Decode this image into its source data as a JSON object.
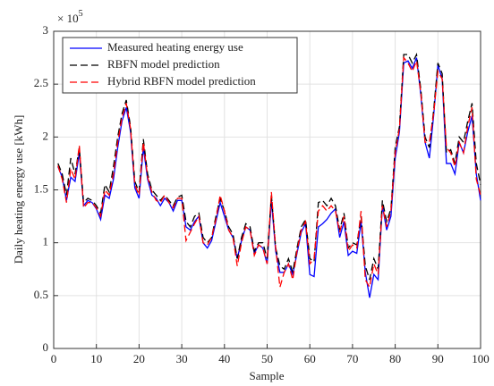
{
  "chart_data": {
    "type": "line",
    "xlabel": "Sample",
    "ylabel": "Daily heating energy use [kWh]",
    "y_multiplier": {
      "base": "× 10",
      "exponent": "5"
    },
    "x": [
      1,
      2,
      3,
      4,
      5,
      6,
      7,
      8,
      9,
      10,
      11,
      12,
      13,
      14,
      15,
      16,
      17,
      18,
      19,
      20,
      21,
      22,
      23,
      24,
      25,
      26,
      27,
      28,
      29,
      30,
      31,
      32,
      33,
      34,
      35,
      36,
      37,
      38,
      39,
      40,
      41,
      42,
      43,
      44,
      45,
      46,
      47,
      48,
      49,
      50,
      51,
      52,
      53,
      54,
      55,
      56,
      57,
      58,
      59,
      60,
      61,
      62,
      63,
      64,
      65,
      66,
      67,
      68,
      69,
      70,
      71,
      72,
      73,
      74,
      75,
      76,
      77,
      78,
      79,
      80,
      81,
      82,
      83,
      84,
      85,
      86,
      87,
      88,
      89,
      90,
      91,
      92,
      93,
      94,
      95,
      96,
      97,
      98,
      99,
      100
    ],
    "series": [
      {
        "name": "Measured heating energy use",
        "color": "#0000ff",
        "linestyle": "solid",
        "values": [
          1.72,
          1.62,
          1.4,
          1.62,
          1.58,
          1.85,
          1.35,
          1.4,
          1.38,
          1.32,
          1.22,
          1.45,
          1.42,
          1.6,
          1.9,
          2.15,
          2.28,
          2.05,
          1.52,
          1.42,
          1.9,
          1.6,
          1.45,
          1.42,
          1.35,
          1.42,
          1.38,
          1.3,
          1.4,
          1.4,
          1.15,
          1.12,
          1.2,
          1.25,
          1.0,
          0.95,
          1.02,
          1.2,
          1.38,
          1.25,
          1.12,
          1.05,
          0.85,
          1.02,
          1.15,
          1.12,
          0.9,
          0.98,
          0.95,
          0.8,
          1.4,
          0.92,
          0.72,
          0.72,
          0.8,
          0.7,
          0.9,
          1.1,
          1.18,
          0.7,
          0.68,
          1.15,
          1.18,
          1.22,
          1.28,
          1.32,
          1.05,
          1.2,
          0.88,
          0.92,
          0.9,
          1.2,
          0.72,
          0.48,
          0.7,
          0.65,
          1.35,
          1.12,
          1.25,
          1.8,
          2.05,
          2.7,
          2.72,
          2.65,
          2.75,
          2.4,
          1.95,
          1.8,
          2.2,
          2.68,
          2.55,
          1.75,
          1.75,
          1.65,
          1.95,
          1.85,
          2.05,
          2.2,
          1.65,
          1.4
        ]
      },
      {
        "name": "RBFN model prediction",
        "color": "#000000",
        "linestyle": "dashed",
        "values": [
          1.75,
          1.65,
          1.45,
          1.8,
          1.65,
          1.9,
          1.38,
          1.42,
          1.4,
          1.35,
          1.28,
          1.55,
          1.48,
          1.72,
          2.0,
          2.22,
          2.35,
          2.1,
          1.58,
          1.48,
          1.98,
          1.65,
          1.5,
          1.45,
          1.4,
          1.45,
          1.4,
          1.35,
          1.43,
          1.45,
          1.2,
          1.15,
          1.25,
          1.28,
          1.05,
          1.0,
          1.05,
          1.25,
          1.42,
          1.3,
          1.15,
          1.08,
          0.85,
          1.05,
          1.18,
          1.15,
          0.92,
          1.0,
          1.0,
          0.85,
          1.45,
          0.95,
          0.78,
          0.75,
          0.85,
          0.72,
          0.95,
          1.15,
          1.22,
          0.85,
          0.82,
          1.38,
          1.4,
          1.35,
          1.42,
          1.35,
          1.12,
          1.28,
          0.95,
          1.0,
          0.98,
          1.25,
          0.78,
          0.65,
          0.85,
          0.75,
          1.4,
          1.2,
          1.32,
          1.9,
          2.1,
          2.78,
          2.78,
          2.7,
          2.78,
          2.45,
          2.0,
          1.9,
          2.25,
          2.7,
          2.6,
          1.85,
          1.88,
          1.75,
          2.0,
          1.95,
          2.15,
          2.32,
          1.75,
          1.55
        ]
      },
      {
        "name": "Hybrid RBFN model prediction",
        "color": "#ff0000",
        "linestyle": "dashed",
        "values": [
          1.73,
          1.6,
          1.38,
          1.7,
          1.6,
          1.92,
          1.33,
          1.38,
          1.38,
          1.33,
          1.25,
          1.5,
          1.45,
          1.65,
          1.95,
          2.18,
          2.32,
          2.08,
          1.55,
          1.45,
          1.95,
          1.62,
          1.48,
          1.4,
          1.38,
          1.45,
          1.38,
          1.33,
          1.42,
          1.42,
          1.02,
          1.1,
          1.18,
          1.25,
          1.0,
          0.98,
          1.05,
          1.22,
          1.45,
          1.3,
          1.12,
          1.05,
          0.78,
          1.0,
          1.15,
          1.12,
          0.88,
          0.98,
          0.95,
          0.8,
          1.48,
          0.95,
          0.58,
          0.72,
          0.8,
          0.65,
          0.92,
          1.12,
          1.2,
          0.8,
          0.85,
          1.3,
          1.35,
          1.3,
          1.35,
          1.3,
          1.1,
          1.25,
          0.92,
          0.98,
          0.95,
          1.3,
          0.65,
          0.58,
          0.8,
          0.7,
          1.35,
          1.15,
          1.3,
          1.85,
          2.08,
          2.75,
          2.7,
          2.62,
          2.72,
          2.42,
          1.95,
          1.95,
          2.22,
          2.62,
          2.55,
          1.9,
          1.85,
          1.72,
          1.95,
          1.85,
          2.1,
          2.28,
          1.6,
          1.45
        ]
      }
    ],
    "xlim": [
      0,
      100
    ],
    "xticks": [
      0,
      10,
      20,
      30,
      40,
      50,
      60,
      70,
      80,
      90,
      100
    ],
    "ylim": [
      0,
      3
    ],
    "yticks": [
      0,
      0.5,
      1,
      1.5,
      2,
      2.5,
      3
    ],
    "grid": true,
    "legend": "upper-left"
  }
}
